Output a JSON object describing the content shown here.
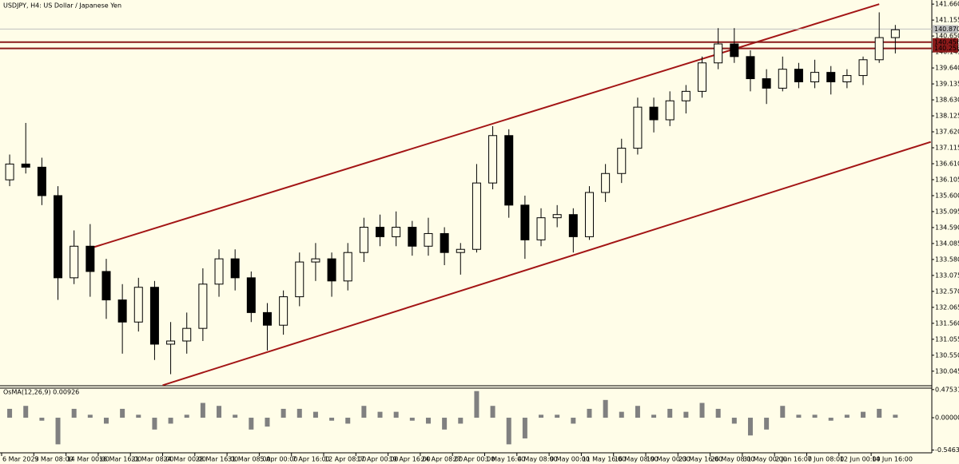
{
  "chart_data": [
    {
      "type": "candlestick",
      "title": "USDJPY, H4:  US Dollar / Japanese Yen",
      "categories": [
        "6 Mar 2023",
        null,
        "9 Mar 08:00",
        null,
        "14 Mar 00:00",
        null,
        "16 Mar 16:00",
        null,
        "21 Mar 08:00",
        null,
        "24 Mar 00:00",
        null,
        "28 Mar 16:00",
        null,
        "31 Mar 08:00",
        null,
        "5 Apr 00:00",
        null,
        "7 Apr 16:00",
        null,
        "12 Apr 08:00",
        null,
        "17 Apr 00:00",
        null,
        "19 Apr 16:00",
        null,
        "24 Apr 08:00",
        null,
        "27 Apr 00:00",
        null,
        "1 May 16:00",
        null,
        "4 May 08:00",
        null,
        "9 May 00:00",
        null,
        "11 May 16:00",
        null,
        "16 May 08:00",
        null,
        "19 May 00:00",
        null,
        "23 May 16:00",
        null,
        "26 May 08:00",
        null,
        "31 May 00:00",
        null,
        "2 Jun 16:00",
        null,
        "7 Jun 08:00",
        null,
        "12 Jun 00:00",
        null,
        "14 Jun 16:00",
        null
      ],
      "open": [
        136.1,
        136.6,
        136.5,
        135.6,
        133.0,
        134.0,
        133.2,
        132.3,
        131.6,
        132.7,
        130.9,
        131.0,
        131.4,
        132.8,
        133.6,
        133.0,
        131.9,
        131.5,
        132.4,
        133.5,
        133.6,
        132.9,
        133.8,
        134.6,
        134.3,
        134.6,
        134.0,
        134.4,
        133.8,
        133.9,
        136.0,
        137.5,
        135.3,
        134.2,
        134.9,
        135.0,
        134.3,
        135.7,
        136.3,
        137.1,
        138.4,
        138.0,
        138.6,
        138.9,
        139.8,
        140.4,
        140.0,
        139.3,
        139.0,
        139.6,
        139.2,
        139.5,
        139.2,
        139.4,
        139.9,
        140.6
      ],
      "high": [
        136.9,
        137.9,
        136.8,
        135.9,
        134.5,
        134.7,
        133.6,
        132.8,
        133.0,
        132.9,
        131.6,
        131.9,
        133.3,
        133.9,
        133.9,
        133.2,
        132.2,
        132.6,
        133.8,
        134.1,
        133.8,
        134.1,
        134.9,
        135.0,
        135.1,
        134.8,
        134.9,
        134.6,
        134.1,
        136.6,
        137.8,
        137.7,
        135.6,
        135.2,
        135.3,
        135.2,
        135.9,
        136.6,
        137.4,
        138.7,
        138.7,
        138.9,
        139.1,
        140.0,
        140.9,
        140.9,
        140.2,
        139.6,
        140.0,
        139.8,
        139.9,
        139.7,
        139.6,
        140.0,
        141.4,
        141.0
      ],
      "low": [
        135.9,
        136.3,
        135.3,
        132.3,
        132.8,
        132.4,
        131.7,
        130.6,
        131.3,
        130.4,
        129.95,
        130.6,
        131.0,
        132.4,
        132.6,
        131.6,
        130.7,
        131.2,
        132.1,
        132.9,
        132.4,
        132.6,
        133.5,
        134.0,
        134.0,
        133.7,
        133.7,
        133.4,
        133.1,
        133.8,
        135.8,
        134.9,
        133.6,
        134.0,
        134.6,
        133.8,
        134.2,
        135.4,
        136.0,
        136.9,
        137.6,
        137.8,
        138.2,
        138.7,
        139.6,
        139.8,
        138.9,
        138.5,
        138.9,
        139.0,
        139.0,
        138.8,
        139.0,
        139.1,
        139.8,
        140.1
      ],
      "close": [
        136.6,
        136.5,
        135.6,
        133.0,
        134.0,
        133.2,
        132.3,
        131.6,
        132.7,
        130.9,
        131.0,
        131.4,
        132.8,
        133.6,
        133.0,
        131.9,
        131.5,
        132.4,
        133.5,
        133.6,
        132.9,
        133.8,
        134.6,
        134.3,
        134.6,
        134.0,
        134.4,
        133.8,
        133.9,
        136.0,
        137.5,
        135.3,
        134.2,
        134.9,
        135.0,
        134.3,
        135.7,
        136.3,
        137.1,
        138.4,
        138.0,
        138.6,
        138.9,
        139.8,
        140.4,
        140.0,
        139.3,
        139.0,
        139.6,
        139.2,
        139.5,
        139.2,
        139.4,
        139.9,
        140.6,
        140.85
      ],
      "color": "#000000",
      "ylim": [
        129.61,
        141.79
      ],
      "yticks": [
        {
          "value": 141.66,
          "label": "141.660"
        },
        {
          "value": 141.155,
          "label": "141.155"
        },
        {
          "value": 140.65,
          "label": "140.650"
        },
        {
          "value": 140.145,
          "label": "140.145"
        },
        {
          "value": 139.64,
          "label": "139.640"
        },
        {
          "value": 139.135,
          "label": "139.135"
        },
        {
          "value": 138.63,
          "label": "138.630"
        },
        {
          "value": 138.125,
          "label": "138.125"
        },
        {
          "value": 137.62,
          "label": "137.620"
        },
        {
          "value": 137.115,
          "label": "137.115"
        },
        {
          "value": 136.61,
          "label": "136.610"
        },
        {
          "value": 136.105,
          "label": "136.105"
        },
        {
          "value": 135.6,
          "label": "135.600"
        },
        {
          "value": 135.095,
          "label": "135.095"
        },
        {
          "value": 134.59,
          "label": "134.590"
        },
        {
          "value": 134.085,
          "label": "134.085"
        },
        {
          "value": 133.58,
          "label": "133.580"
        },
        {
          "value": 133.075,
          "label": "133.075"
        },
        {
          "value": 132.57,
          "label": "132.570"
        },
        {
          "value": 132.065,
          "label": "132.065"
        },
        {
          "value": 131.56,
          "label": "131.560"
        },
        {
          "value": 131.055,
          "label": "131.055"
        },
        {
          "value": 130.55,
          "label": "130.550"
        },
        {
          "value": 130.045,
          "label": "130.045"
        }
      ],
      "trendlines": [
        {
          "x": [
            5.1,
            54.0
          ],
          "y": [
            133.95,
            141.66
          ]
        },
        {
          "x": [
            9.5,
            57.2
          ],
          "y": [
            129.6,
            137.3
          ]
        }
      ],
      "trendline_color": "#a31515",
      "hlines": [
        {
          "value": 140.456,
          "color": "#8b1a1a"
        },
        {
          "value": 140.258,
          "color": "#8b1a1a"
        }
      ],
      "price_line": {
        "value": 140.87,
        "label": "140.870",
        "color": "#c0c0c0"
      }
    },
    {
      "type": "bar",
      "title": "OsMA(12,26,9) 0.00926",
      "values": [
        0.15,
        0.2,
        -0.05,
        -0.45,
        0.15,
        0.05,
        -0.1,
        0.15,
        0.05,
        -0.2,
        -0.1,
        0.05,
        0.25,
        0.2,
        0.05,
        -0.2,
        -0.15,
        0.15,
        0.15,
        0.1,
        -0.05,
        -0.1,
        0.2,
        0.1,
        0.1,
        -0.05,
        -0.1,
        -0.2,
        -0.1,
        0.45,
        0.2,
        -0.45,
        -0.35,
        0.05,
        0.05,
        -0.1,
        0.15,
        0.3,
        0.1,
        0.2,
        0.05,
        0.15,
        0.1,
        0.25,
        0.15,
        -0.1,
        -0.3,
        -0.2,
        0.2,
        0.05,
        0.05,
        -0.05,
        0.05,
        0.1,
        0.15,
        0.05
      ],
      "color": "#808080",
      "ylim": [
        -0.58,
        0.5
      ],
      "yticks": [
        0.47531,
        {
          "value": 0,
          "label": "0.00000"
        },
        -0.54631
      ]
    }
  ]
}
